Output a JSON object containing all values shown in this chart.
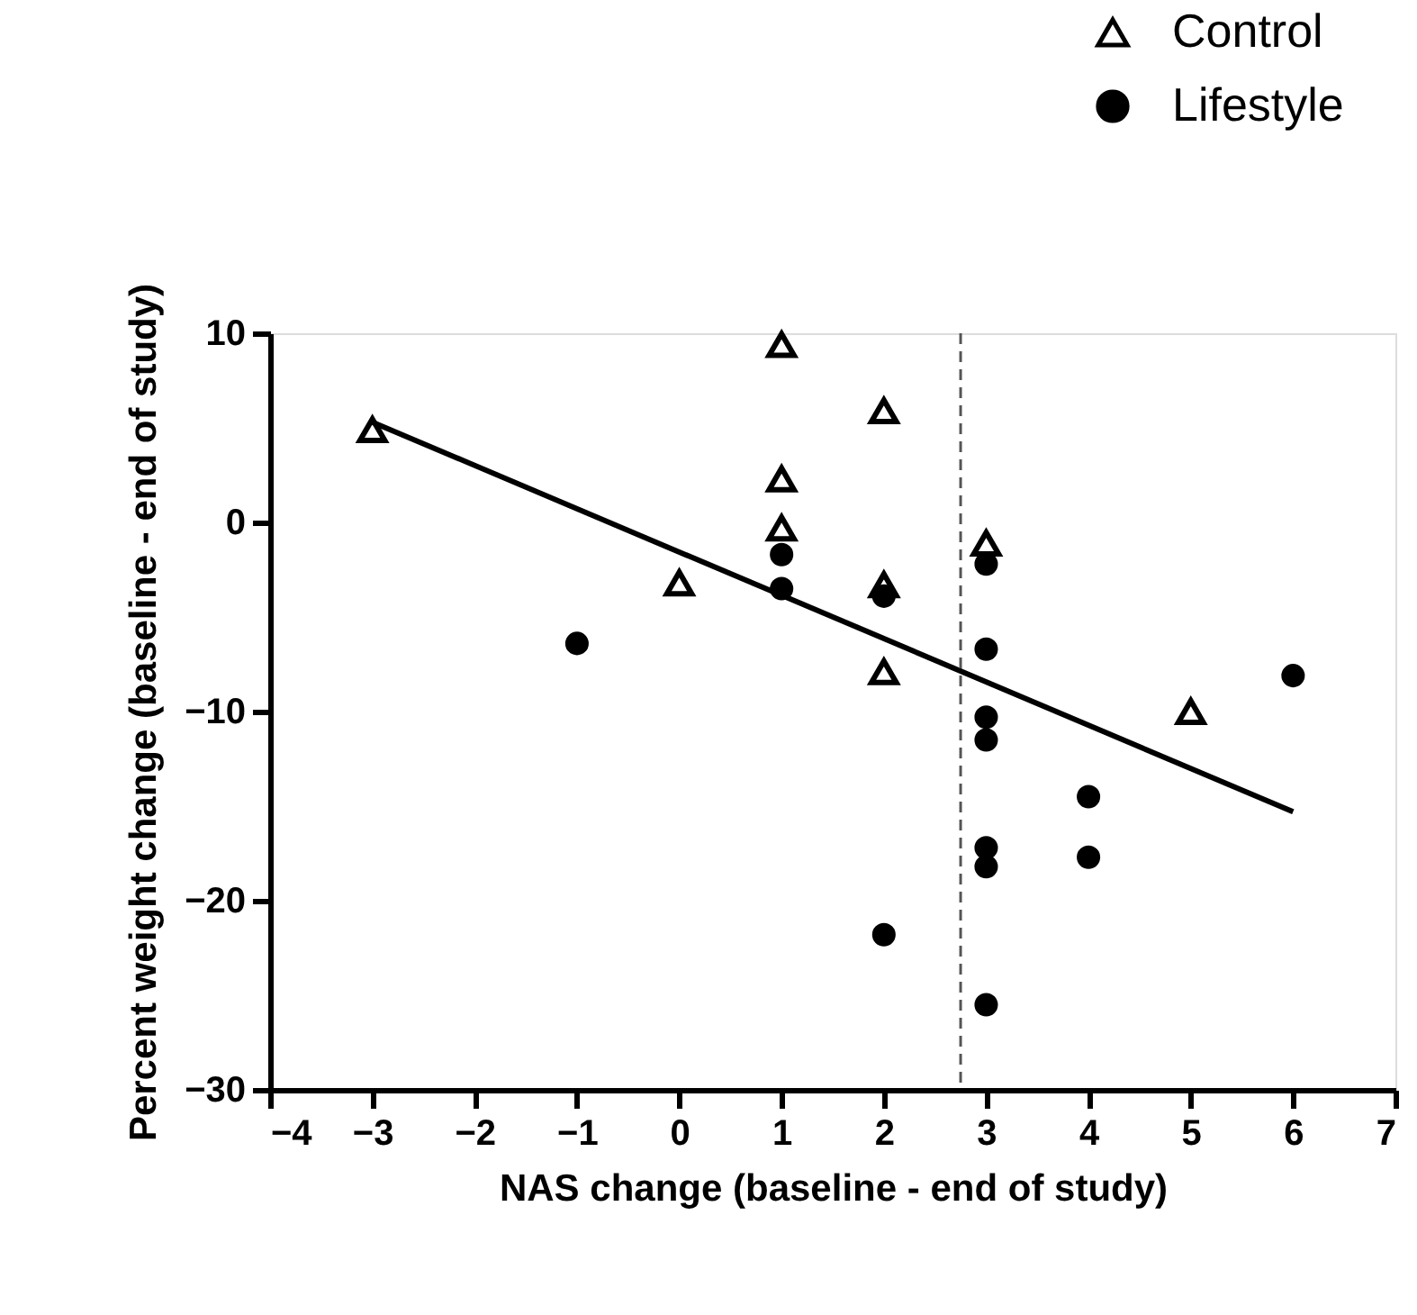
{
  "chart_data": {
    "type": "scatter",
    "xlabel": "NAS change (baseline - end of study)",
    "ylabel": "Percent weight change (baseline - end of study)",
    "xlim": [
      -4,
      7
    ],
    "ylim": [
      -30,
      10
    ],
    "xticks": [
      -4,
      -3,
      -2,
      -1,
      0,
      1,
      2,
      3,
      4,
      5,
      6,
      7
    ],
    "yticks": [
      -30,
      -20,
      -10,
      0,
      10
    ],
    "grid": false,
    "legend": "top right",
    "series": [
      {
        "name": "Control",
        "color": "#000000",
        "marker": "triangle",
        "x": [
          -3,
          0,
          1,
          1,
          1,
          2,
          2,
          2,
          3,
          5
        ],
        "values": [
          4.9,
          -3.2,
          9.4,
          2.3,
          -0.3,
          5.9,
          -3.3,
          -7.9,
          -1.1,
          -10.0
        ]
      },
      {
        "name": "Lifestyle",
        "color": "#000000",
        "marker": "circle",
        "x": [
          -1,
          0,
          1,
          1,
          2,
          2,
          3,
          3,
          3,
          3,
          3,
          3,
          3,
          4,
          4,
          6
        ],
        "values": [
          -6.4,
          null,
          -1.7,
          -3.5,
          -3.9,
          -21.8,
          -2.2,
          -6.7,
          -10.3,
          -11.5,
          -17.2,
          -18.2,
          -25.5,
          -14.5,
          -17.7,
          -8.1
        ]
      },
      {
        "type": "line",
        "color": "#000000",
        "marker": "none",
        "line_style": "solid",
        "x": [
          -3,
          6
        ],
        "values": [
          5.3,
          -15.3
        ]
      }
    ],
    "ref_lines": [
      {
        "axis": "x",
        "value": 2.75,
        "color": "#555555",
        "line_style": "dashed"
      }
    ]
  }
}
